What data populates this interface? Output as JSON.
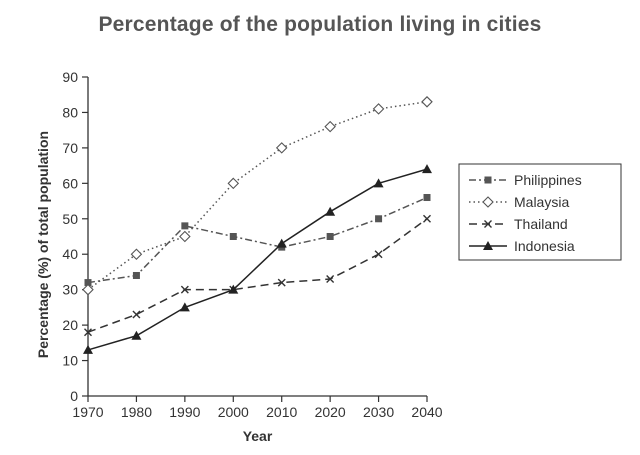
{
  "chart_data": {
    "type": "line",
    "title": "Percentage of the population living in cities",
    "xlabel": "Year",
    "ylabel": "Percentage (%) of total population",
    "x": [
      1970,
      1980,
      1990,
      2000,
      2010,
      2020,
      2030,
      2040
    ],
    "x_tick_labels": [
      "1970",
      "1980",
      "1990",
      "2000",
      "2010",
      "2020",
      "2030",
      "2040"
    ],
    "ylim": [
      0,
      90
    ],
    "y_ticks": [
      0,
      10,
      20,
      30,
      40,
      50,
      60,
      70,
      80,
      90
    ],
    "y_tick_labels": [
      "0",
      "10",
      "20",
      "30",
      "40",
      "50",
      "60",
      "70",
      "80",
      "90"
    ],
    "grid": false,
    "legend_position": "right",
    "series": [
      {
        "name": "Philippines",
        "values": [
          32,
          34,
          48,
          45,
          42,
          45,
          50,
          56
        ],
        "marker": "square",
        "dash": "dash-dot",
        "color": "#555555"
      },
      {
        "name": "Malaysia",
        "values": [
          30,
          40,
          45,
          60,
          70,
          76,
          81,
          83
        ],
        "marker": "diamond",
        "dash": "dotted",
        "color": "#555555"
      },
      {
        "name": "Thailand",
        "values": [
          18,
          23,
          30,
          30,
          32,
          33,
          40,
          50
        ],
        "marker": "x",
        "dash": "dashed",
        "color": "#333333"
      },
      {
        "name": "Indonesia",
        "values": [
          13,
          17,
          25,
          30,
          43,
          52,
          60,
          64
        ],
        "marker": "triangle",
        "dash": "solid",
        "color": "#222222"
      }
    ]
  }
}
